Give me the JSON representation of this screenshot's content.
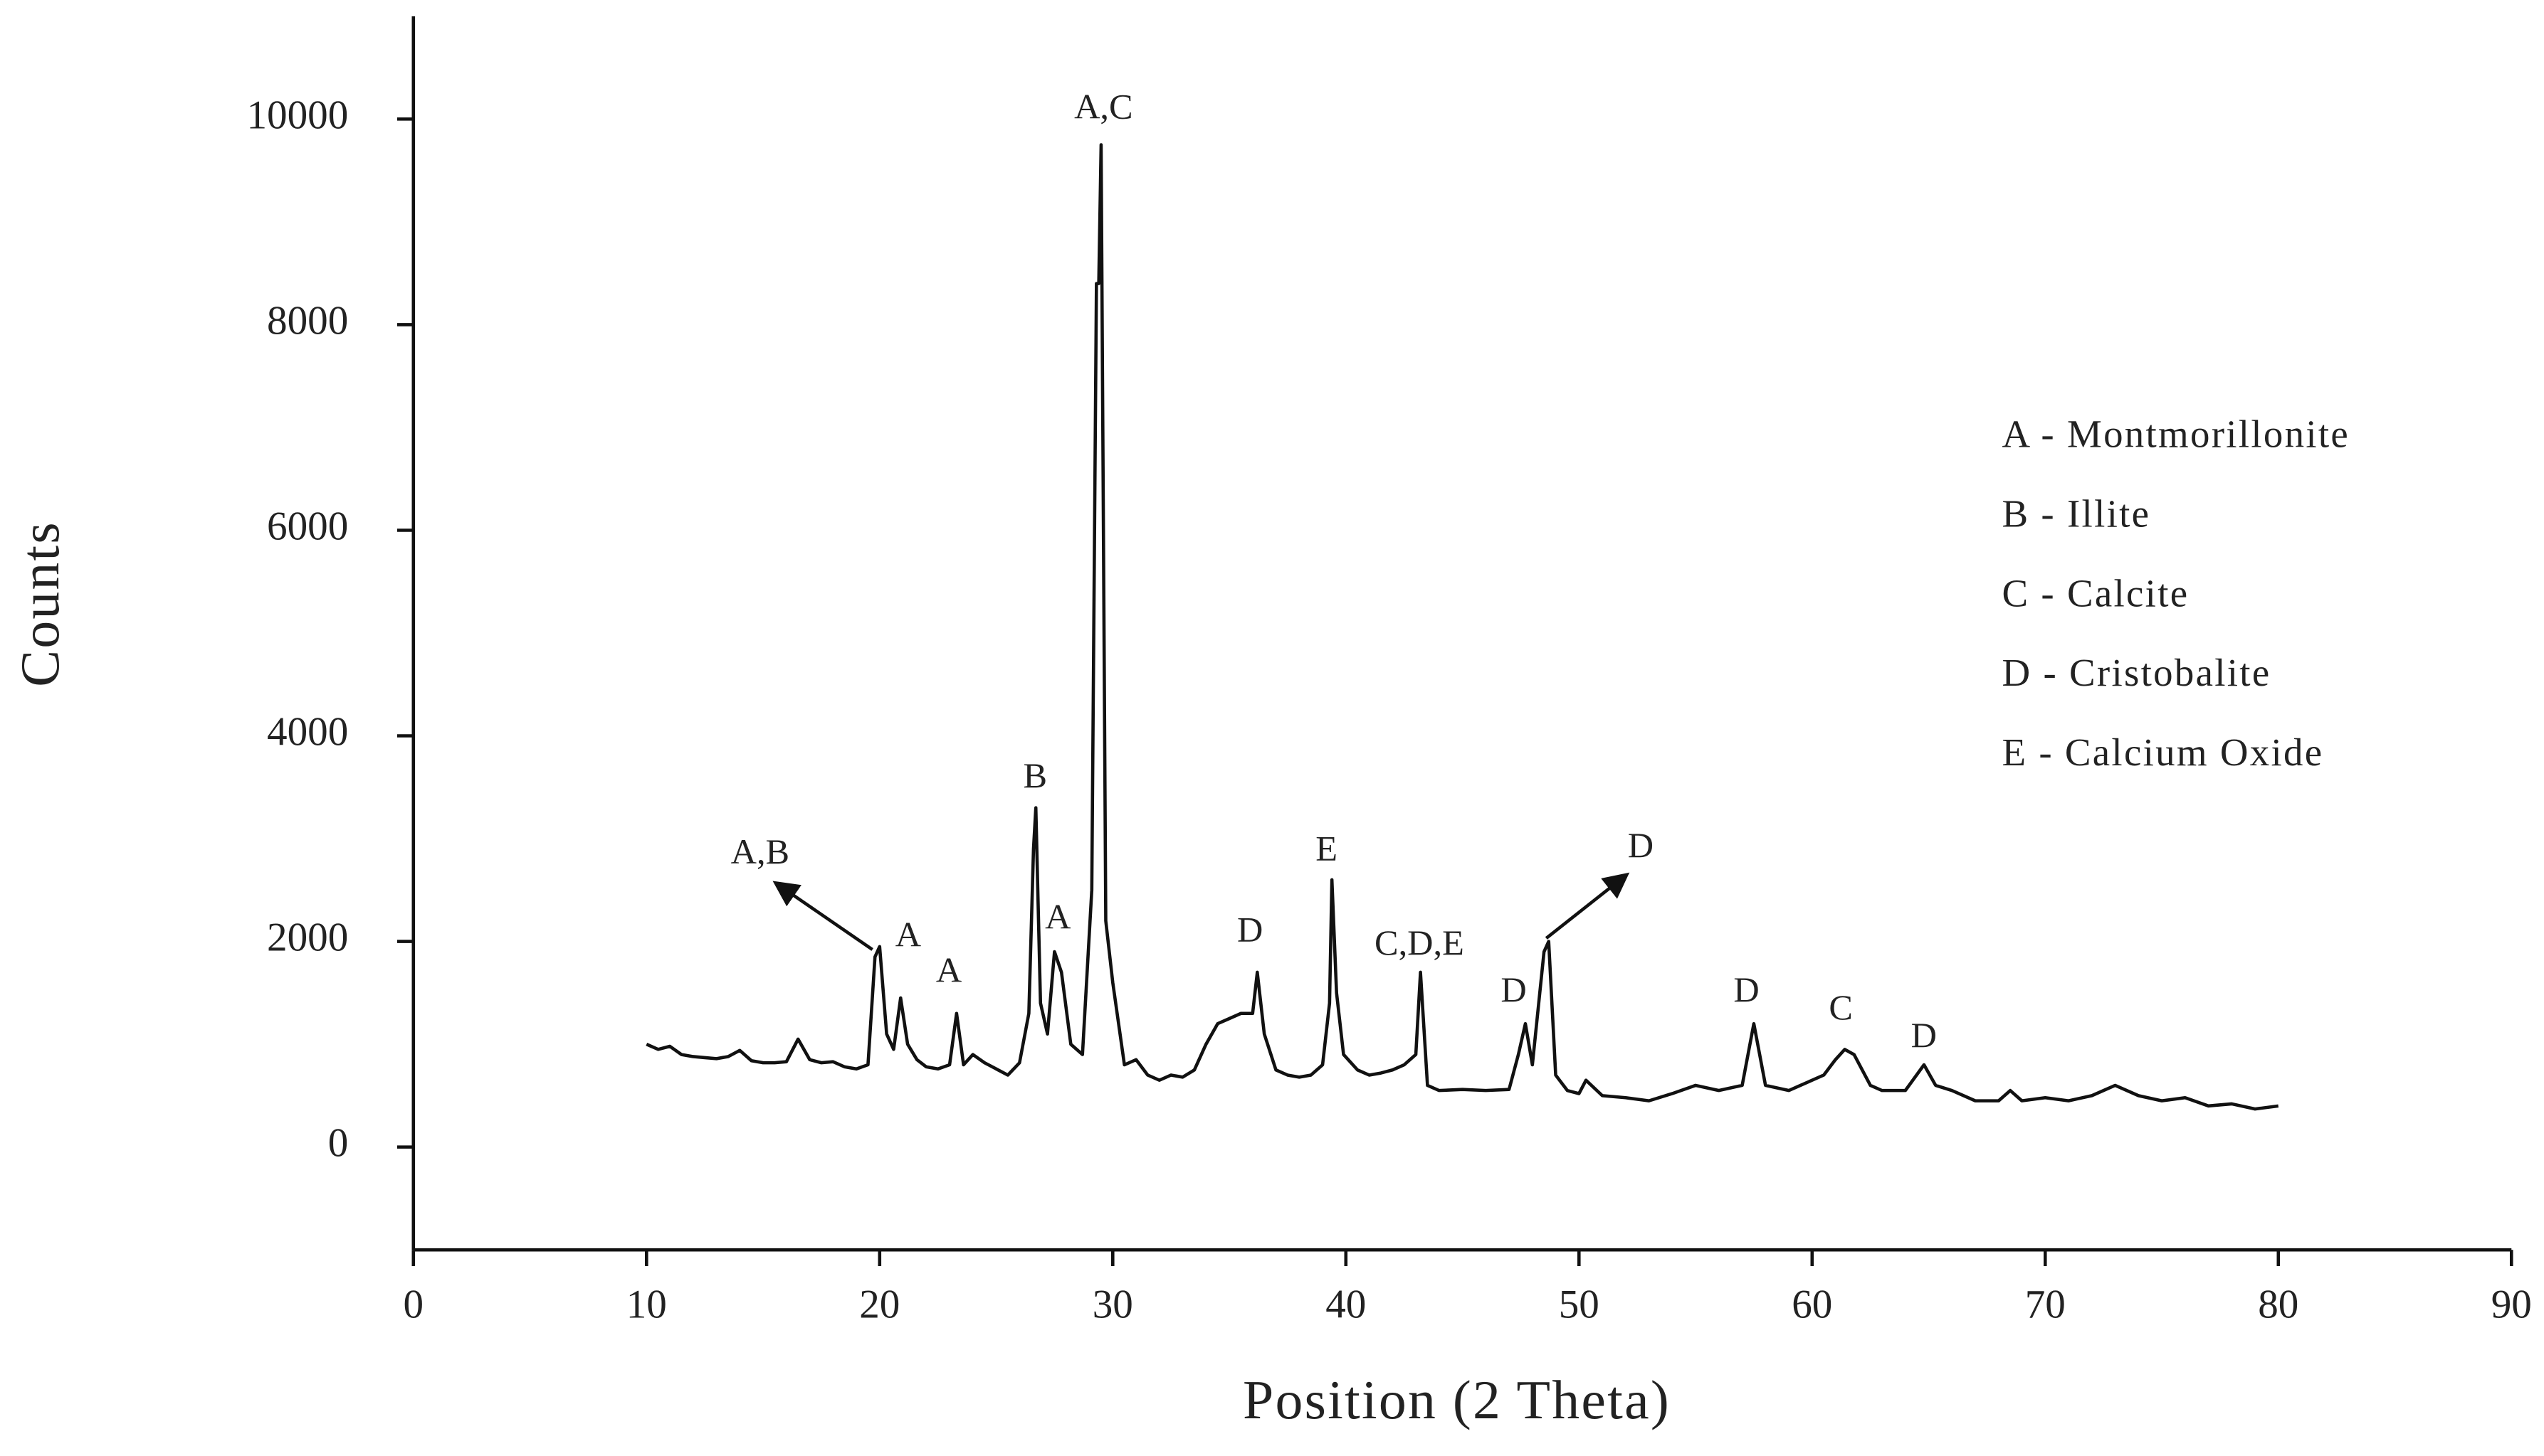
{
  "chart_data": {
    "type": "line",
    "xlabel": "Position (2 Theta)",
    "ylabel": "Counts",
    "xlim": [
      0,
      90
    ],
    "ylim": [
      -1000,
      11000
    ],
    "xticks": [
      0,
      10,
      20,
      30,
      40,
      50,
      60,
      70,
      80,
      90
    ],
    "yticks": [
      0,
      2000,
      4000,
      6000,
      8000,
      10000
    ],
    "x": [
      10,
      10.5,
      11,
      11.5,
      12,
      12.5,
      13,
      13.5,
      14,
      14.5,
      15,
      15.5,
      16,
      16.5,
      17,
      17.5,
      18,
      18.5,
      19,
      19.5,
      19.8,
      20.0,
      20.3,
      20.6,
      20.9,
      21.2,
      21.6,
      22,
      22.5,
      23,
      23.3,
      23.6,
      24,
      24.5,
      25,
      25.5,
      26,
      26.4,
      26.6,
      26.7,
      26.9,
      27.2,
      27.5,
      27.8,
      28.2,
      28.7,
      29.1,
      29.3,
      29.4,
      29.5,
      29.7,
      30,
      30.5,
      31,
      31.5,
      32,
      32.5,
      33,
      33.5,
      34,
      34.5,
      35,
      35.5,
      36,
      36.2,
      36.5,
      37,
      37.5,
      38,
      38.5,
      39,
      39.3,
      39.4,
      39.6,
      39.9,
      40.5,
      41,
      41.5,
      42,
      42.5,
      43,
      43.2,
      43.5,
      44,
      45,
      46,
      47,
      47.4,
      47.7,
      48,
      48.5,
      48.7,
      49,
      49.5,
      50,
      50.3,
      51,
      52,
      53,
      54,
      55,
      56,
      57,
      57.5,
      58,
      59,
      60,
      60.5,
      61,
      61.4,
      61.8,
      62.5,
      63,
      64,
      64.8,
      65.3,
      66,
      67,
      68,
      68.5,
      69,
      70,
      71,
      72,
      73,
      74,
      75,
      76,
      77,
      78,
      79,
      80
    ],
    "series": [
      {
        "color": "#111111",
        "values": [
          1000,
          950,
          980,
          900,
          880,
          870,
          860,
          880,
          940,
          840,
          820,
          820,
          830,
          1050,
          850,
          820,
          830,
          780,
          760,
          800,
          1850,
          1950,
          1100,
          950,
          1450,
          1000,
          850,
          780,
          760,
          800,
          1300,
          800,
          900,
          820,
          760,
          700,
          820,
          1300,
          2900,
          3300,
          1400,
          1100,
          1900,
          1700,
          1000,
          900,
          2500,
          8400,
          8400,
          9750,
          2200,
          1600,
          800,
          850,
          700,
          650,
          700,
          680,
          750,
          1000,
          1200,
          1250,
          1300,
          1300,
          1700,
          1100,
          750,
          700,
          680,
          700,
          800,
          1400,
          2600,
          1500,
          900,
          750,
          700,
          720,
          750,
          800,
          900,
          1700,
          600,
          550,
          560,
          550,
          560,
          900,
          1200,
          800,
          1900,
          2000,
          700,
          550,
          520,
          650,
          500,
          480,
          450,
          520,
          600,
          550,
          600,
          1200,
          600,
          550,
          650,
          700,
          850,
          950,
          900,
          600,
          550,
          550,
          800,
          600,
          550,
          450,
          450,
          550,
          450,
          480,
          450,
          500,
          600,
          500,
          450,
          480,
          400,
          420,
          370,
          400
        ]
      }
    ],
    "annotations": [
      "A,C",
      "B",
      "A,B",
      "A",
      "A",
      "A",
      "D",
      "E",
      "C,D,E",
      "D",
      "D",
      "D",
      "C",
      "D"
    ],
    "legend": [
      "A - Montmorillonite",
      "B - Illite",
      "C - Calcite",
      "D - Cristobalite",
      "E - Calcium Oxide"
    ]
  }
}
